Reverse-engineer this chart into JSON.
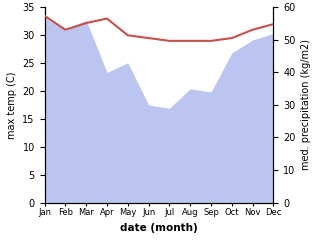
{
  "months": [
    "Jan",
    "Feb",
    "Mar",
    "Apr",
    "May",
    "Jun",
    "Jul",
    "Aug",
    "Sep",
    "Oct",
    "Nov",
    "Dec"
  ],
  "temp": [
    33.5,
    31.0,
    32.2,
    33.0,
    30.0,
    29.5,
    29.0,
    29.0,
    29.0,
    29.5,
    31.0,
    32.0
  ],
  "precip": [
    57,
    53,
    56,
    40,
    43,
    30,
    29,
    35,
    34,
    46,
    50,
    52
  ],
  "temp_color": "#c9504a",
  "precip_fill_color": "#bcc5ef",
  "temp_ylim": [
    0,
    35
  ],
  "precip_ylim": [
    0,
    60
  ],
  "xlabel": "date (month)",
  "ylabel_left": "max temp (C)",
  "ylabel_right": "med. precipitation (kg/m2)",
  "temp_yticks": [
    0,
    5,
    10,
    15,
    20,
    25,
    30,
    35
  ],
  "precip_yticks": [
    0,
    10,
    20,
    30,
    40,
    50,
    60
  ],
  "bg_color": "#ffffff"
}
